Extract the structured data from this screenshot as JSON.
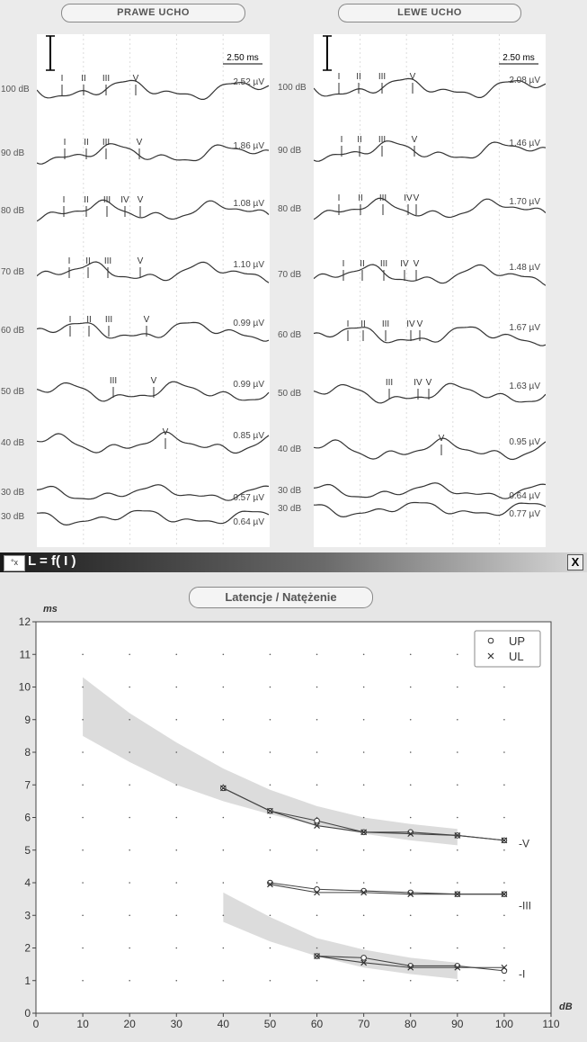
{
  "top": {
    "right_ear": {
      "label": "PRAWE UCHO",
      "scale_label": "2.50 ms",
      "traces": [
        {
          "db": "100 dB",
          "amp": "2.52 µV",
          "peaks": [
            "I",
            "II",
            "III",
            "V"
          ]
        },
        {
          "db": "90 dB",
          "amp": "1.86 µV",
          "peaks": [
            "I",
            "II",
            "III",
            "V"
          ]
        },
        {
          "db": "80 dB",
          "amp": "1.08 µV",
          "peaks": [
            "I",
            "II",
            "III",
            "IV",
            "V"
          ]
        },
        {
          "db": "70 dB",
          "amp": "1.10 µV",
          "peaks": [
            "I",
            "II",
            "III",
            "V"
          ]
        },
        {
          "db": "60 dB",
          "amp": "0.99 µV",
          "peaks": [
            "I",
            "II",
            "III",
            "V"
          ]
        },
        {
          "db": "50 dB",
          "amp": "0.99 µV",
          "peaks": [
            "III",
            "V"
          ]
        },
        {
          "db": "40 dB",
          "amp": "0.85 µV",
          "peaks": [
            "V"
          ]
        },
        {
          "db": "30 dB",
          "amp": "0.57 µV",
          "peaks": []
        },
        {
          "db": "30 dB",
          "amp": "0.64 µV",
          "peaks": []
        }
      ]
    },
    "left_ear": {
      "label": "LEWE UCHO",
      "scale_label": "2.50 ms",
      "traces": [
        {
          "db": "100 dB",
          "amp": "2.08 µV",
          "peaks": [
            "I",
            "II",
            "III",
            "V"
          ]
        },
        {
          "db": "90 dB",
          "amp": "1.46 µV",
          "peaks": [
            "I",
            "II",
            "III",
            "V"
          ]
        },
        {
          "db": "80 dB",
          "amp": "1.70 µV",
          "peaks": [
            "I",
            "II",
            "III",
            "IV",
            "V"
          ]
        },
        {
          "db": "70 dB",
          "amp": "1.48 µV",
          "peaks": [
            "I",
            "II",
            "III",
            "IV",
            "V"
          ]
        },
        {
          "db": "60 dB",
          "amp": "1.67 µV",
          "peaks": [
            "I",
            "II",
            "III",
            "IV",
            "V"
          ]
        },
        {
          "db": "50 dB",
          "amp": "1.63 µV",
          "peaks": [
            "III",
            "IV",
            "V"
          ]
        },
        {
          "db": "40 dB",
          "amp": "0.95 µV",
          "peaks": [
            "V"
          ]
        },
        {
          "db": "30 dB",
          "amp": "0.64 µV",
          "peaks": []
        },
        {
          "db": "30 dB",
          "amp": "0.77 µV",
          "peaks": []
        }
      ]
    }
  },
  "window": {
    "title": "L = f( I )",
    "close_label": "X",
    "icon_label": "°x"
  },
  "chart_data": {
    "type": "line",
    "title": "Latencje / Natężenie",
    "xlabel": "dB",
    "ylabel": "ms",
    "xlim": [
      0,
      110
    ],
    "ylim": [
      0,
      12
    ],
    "x_ticks": [
      "0",
      "10",
      "20",
      "30",
      "40",
      "50",
      "60",
      "70",
      "80",
      "90",
      "100",
      "110"
    ],
    "y_ticks": [
      "0",
      "1",
      "2",
      "3",
      "4",
      "5",
      "6",
      "7",
      "8",
      "9",
      "10",
      "11",
      "12"
    ],
    "grid": true,
    "legend_position": "top-right",
    "legend": [
      {
        "marker": "o",
        "label": "UP"
      },
      {
        "marker": "x",
        "label": "UL"
      }
    ],
    "series_labels": [
      "-V",
      "-III",
      "-I"
    ],
    "series": [
      {
        "name": "UP",
        "wave": "V",
        "x": [
          40,
          50,
          60,
          70,
          80,
          90,
          100
        ],
        "y": [
          6.9,
          6.2,
          5.9,
          5.55,
          5.55,
          5.45,
          5.3
        ]
      },
      {
        "name": "UL",
        "wave": "V",
        "x": [
          40,
          50,
          60,
          70,
          80,
          90,
          100
        ],
        "y": [
          6.9,
          6.2,
          5.75,
          5.55,
          5.5,
          5.45,
          5.3
        ]
      },
      {
        "name": "UP",
        "wave": "III",
        "x": [
          50,
          60,
          70,
          80,
          90,
          100
        ],
        "y": [
          4.0,
          3.8,
          3.75,
          3.7,
          3.65,
          3.65
        ]
      },
      {
        "name": "UL",
        "wave": "III",
        "x": [
          50,
          60,
          70,
          80,
          90,
          100
        ],
        "y": [
          3.95,
          3.7,
          3.7,
          3.65,
          3.65,
          3.65
        ]
      },
      {
        "name": "UP",
        "wave": "I",
        "x": [
          60,
          70,
          80,
          90,
          100
        ],
        "y": [
          1.75,
          1.7,
          1.45,
          1.45,
          1.3
        ]
      },
      {
        "name": "UL",
        "wave": "I",
        "x": [
          60,
          70,
          80,
          90,
          100
        ],
        "y": [
          1.75,
          1.55,
          1.4,
          1.4,
          1.4
        ]
      }
    ],
    "norm_bands": [
      {
        "wave": "V",
        "x": [
          10,
          20,
          30,
          40,
          50,
          60,
          70,
          80,
          90
        ],
        "upper": [
          10.3,
          9.2,
          8.3,
          7.5,
          6.85,
          6.35,
          6.0,
          5.8,
          5.65
        ],
        "lower": [
          8.5,
          7.7,
          7.0,
          6.5,
          6.1,
          5.75,
          5.5,
          5.3,
          5.15
        ]
      },
      {
        "wave": "I",
        "x": [
          40,
          50,
          60,
          70,
          80,
          90
        ],
        "upper": [
          3.7,
          2.95,
          2.3,
          1.95,
          1.7,
          1.55
        ],
        "lower": [
          2.8,
          2.2,
          1.75,
          1.4,
          1.2,
          1.05
        ]
      }
    ]
  }
}
